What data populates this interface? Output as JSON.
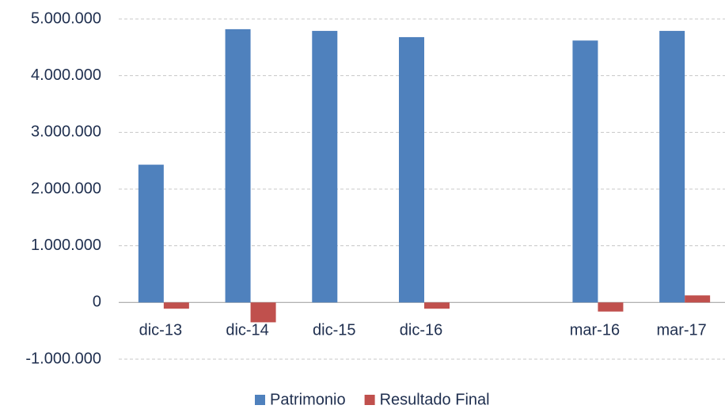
{
  "chart_data": {
    "type": "bar",
    "categories": [
      "dic-13",
      "dic-14",
      "dic-15",
      "dic-16",
      null,
      "mar-16",
      "mar-17"
    ],
    "series": [
      {
        "name": "Patrimonio",
        "color": "#4f81bd",
        "values": [
          2430000,
          4820000,
          4790000,
          4680000,
          null,
          4620000,
          4790000
        ]
      },
      {
        "name": "Resultado Final",
        "color": "#c0504d",
        "values": [
          -110000,
          -350000,
          0,
          -110000,
          null,
          -160000,
          125000
        ]
      }
    ],
    "ylim": [
      -1000000,
      5000000
    ],
    "yticks": [
      {
        "value": -1000000,
        "label": "-1.000.000"
      },
      0,
      {
        "value": 1000000,
        "label": "1.000.000"
      },
      {
        "value": 2000000,
        "label": "2.000.000"
      },
      {
        "value": 3000000,
        "label": "3.000.000"
      },
      {
        "value": 4000000,
        "label": "4.000.000"
      },
      {
        "value": 5000000,
        "label": "5.000.000"
      }
    ],
    "grid": true,
    "legend": "bottom"
  }
}
